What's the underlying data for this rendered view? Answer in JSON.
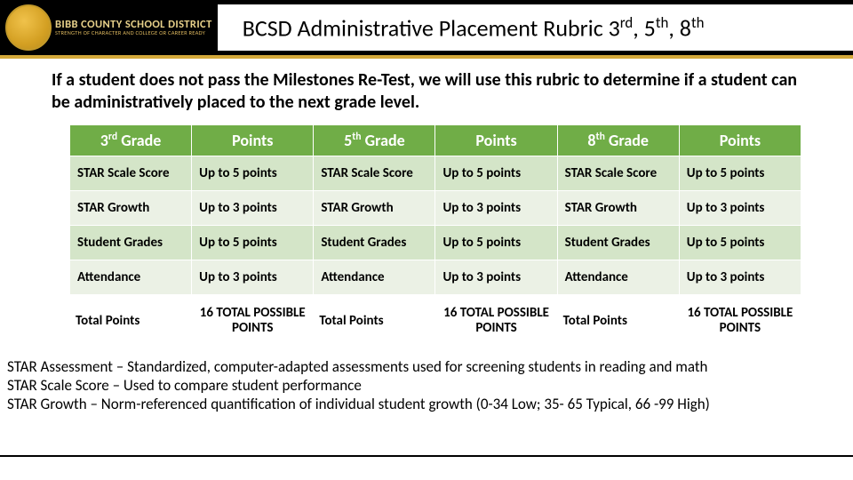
{
  "header": {
    "org_line1": "BIBB COUNTY SCHOOL DISTRICT",
    "org_line2": "STRENGTH OF CHARACTER AND COLLEGE OR CAREER READY",
    "title_html": "BCSD Administrative Placement Rubric 3<sup>rd</sup>, 5<sup>th</sup>, 8<sup>th</sup>"
  },
  "intro": "If a student does not pass the Milestones Re-Test, we will use this rubric to determine if a student can be administratively placed to the next grade level.",
  "table": {
    "headers_html": [
      "3<sup>rd</sup> Grade",
      "Points",
      "5<sup>th</sup> Grade",
      "Points",
      "8<sup>th</sup> Grade",
      "Points"
    ],
    "rows": [
      {
        "band": "a",
        "cells": [
          "STAR Scale Score",
          "Up to 5 points",
          "STAR Scale Score",
          "Up to 5 points",
          "STAR Scale Score",
          "Up to 5 points"
        ]
      },
      {
        "band": "b",
        "cells": [
          "STAR Growth",
          "Up to 3 points",
          "STAR Growth",
          "Up to 3 points",
          "STAR Growth",
          "Up to 3 points"
        ]
      },
      {
        "band": "a",
        "cells": [
          "Student Grades",
          "Up to 5 points",
          "Student Grades",
          "Up to 5 points",
          "Student Grades",
          "Up to 5 points"
        ]
      },
      {
        "band": "b",
        "cells": [
          "Attendance",
          "Up to 3 points",
          "Attendance",
          "Up to 3 points",
          "Attendance",
          "Up to 3 points"
        ]
      }
    ],
    "total_label": "Total Points",
    "total_value": "16 TOTAL POSSIBLE POINTS"
  },
  "footnotes": [
    "STAR Assessment – Standardized, computer-adapted assessments used for screening students in reading and math",
    "STAR Scale Score – Used to compare student performance",
    "STAR Growth – Norm-referenced quantification of individual student growth (0-34 Low; 35- 65 Typical, 66 -99 High)"
  ],
  "colors": {
    "header_bg": "#70ad47",
    "band_a": "#d4e5c8",
    "band_b": "#ebf1e5",
    "gold": "#d4a93a"
  }
}
